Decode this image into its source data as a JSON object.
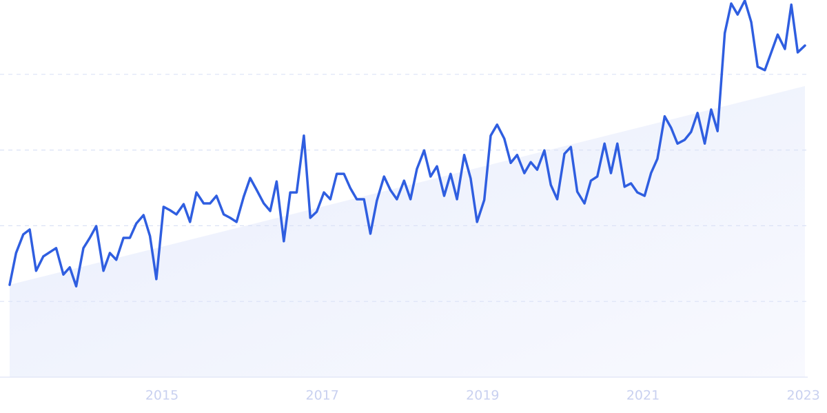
{
  "chart_data": {
    "type": "line",
    "x": [
      2013.1,
      2013.18,
      2013.27,
      2013.35,
      2013.43,
      2013.52,
      2013.6,
      2013.68,
      2013.77,
      2013.85,
      2013.93,
      2014.02,
      2014.1,
      2014.18,
      2014.27,
      2014.35,
      2014.43,
      2014.52,
      2014.6,
      2014.68,
      2014.77,
      2014.85,
      2014.93,
      2015.02,
      2015.1,
      2015.18,
      2015.27,
      2015.35,
      2015.43,
      2015.52,
      2015.6,
      2015.68,
      2015.77,
      2015.85,
      2015.93,
      2016.02,
      2016.1,
      2016.18,
      2016.27,
      2016.35,
      2016.43,
      2016.52,
      2016.6,
      2016.68,
      2016.77,
      2016.85,
      2016.93,
      2017.02,
      2017.1,
      2017.18,
      2017.27,
      2017.35,
      2017.43,
      2017.52,
      2017.6,
      2017.68,
      2017.77,
      2017.85,
      2017.93,
      2018.02,
      2018.1,
      2018.18,
      2018.27,
      2018.35,
      2018.43,
      2018.52,
      2018.6,
      2018.68,
      2018.77,
      2018.85,
      2018.93,
      2019.02,
      2019.1,
      2019.18,
      2019.27,
      2019.35,
      2019.43,
      2019.52,
      2019.6,
      2019.68,
      2019.77,
      2019.85,
      2019.93,
      2020.02,
      2020.1,
      2020.18,
      2020.27,
      2020.35,
      2020.43,
      2020.52,
      2020.6,
      2020.68,
      2020.77,
      2020.85,
      2020.93,
      2021.02,
      2021.1,
      2021.18,
      2021.27,
      2021.35,
      2021.43,
      2021.52,
      2021.6,
      2021.68,
      2021.77,
      2021.85,
      2021.93,
      2022.02,
      2022.1,
      2022.18,
      2022.27,
      2022.35,
      2022.43,
      2022.52,
      2022.6,
      2022.68,
      2022.77,
      2022.85,
      2022.93,
      2023.02
    ],
    "series": [
      {
        "color": "#2f5ee0",
        "values": [
          24.4,
          32.8,
          37.7,
          39.0,
          28.1,
          31.9,
          33.0,
          34.1,
          27.1,
          29.0,
          24.0,
          34.1,
          36.8,
          39.9,
          28.1,
          32.8,
          31.0,
          36.8,
          36.8,
          40.6,
          42.8,
          37.3,
          25.9,
          45.0,
          44.1,
          43.0,
          45.7,
          41.0,
          48.8,
          45.9,
          45.9,
          47.9,
          43.0,
          42.1,
          41.0,
          47.7,
          52.6,
          49.5,
          45.9,
          43.9,
          51.7,
          35.9,
          48.8,
          48.8,
          63.8,
          42.1,
          43.7,
          48.8,
          47.0,
          53.7,
          53.7,
          49.9,
          47.0,
          47.0,
          37.9,
          46.6,
          53.0,
          49.4,
          47.0,
          51.9,
          47.0,
          55.0,
          59.9,
          53.0,
          55.7,
          47.9,
          53.7,
          47.0,
          58.7,
          52.5,
          41.0,
          46.8,
          63.8,
          66.7,
          63.0,
          56.6,
          58.7,
          53.9,
          56.8,
          54.8,
          59.9,
          50.8,
          47.0,
          59.0,
          60.8,
          49.0,
          45.9,
          51.9,
          53.0,
          61.7,
          53.9,
          61.7,
          50.3,
          51.2,
          48.8,
          47.9,
          53.9,
          57.7,
          68.9,
          65.9,
          61.7,
          62.7,
          64.8,
          69.8,
          61.7,
          70.7,
          65.0,
          90.9,
          98.7,
          95.8,
          99.5,
          93.8,
          82.0,
          81.1,
          85.8,
          90.5,
          86.7,
          98.4,
          85.8,
          87.6
        ]
      }
    ],
    "trend": {
      "x": [
        2013.1,
        2023.02
      ],
      "values": [
        24.4,
        76.9
      ]
    },
    "xlim": [
      2013.1,
      2023.02
    ],
    "xticks": [
      2015,
      2017,
      2019,
      2021,
      2023
    ],
    "ylim": [
      0,
      100
    ],
    "yticks": [
      0,
      20,
      40,
      60,
      80
    ],
    "grid": true
  }
}
